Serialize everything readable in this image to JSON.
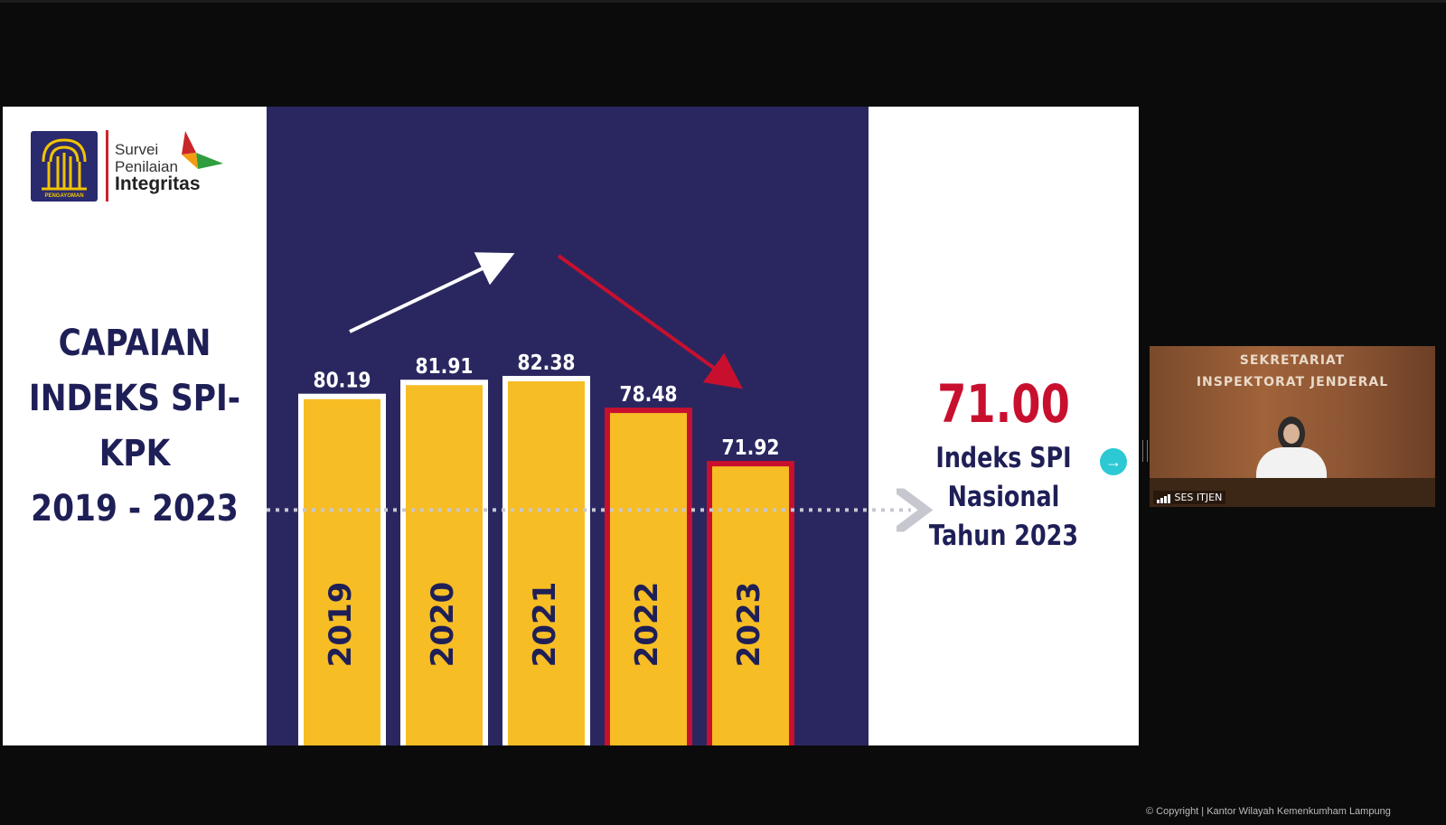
{
  "brand": {
    "logo_caption": "PENGAYOMAN",
    "line1": "Survei",
    "line2": "Penilaian",
    "line3": "Integritas"
  },
  "slide": {
    "title_lines": [
      "CAPAIAN",
      "INDEKS SPI-",
      "KPK",
      "2019 - 2023"
    ],
    "national_value": "71.00",
    "national_label_lines": [
      "Indeks SPI",
      "Nasional",
      "Tahun 2023"
    ]
  },
  "chart_data": {
    "type": "bar",
    "categories": [
      "2019",
      "2020",
      "2021",
      "2022",
      "2023"
    ],
    "values": [
      80.19,
      81.91,
      82.38,
      78.48,
      71.92
    ],
    "value_labels": [
      "80.19",
      "81.91",
      "82.38",
      "78.48",
      "71.92"
    ],
    "reference_line": 71.0,
    "highlighted": [
      false,
      false,
      false,
      true,
      true
    ],
    "colors": {
      "bar": "#f6bd25",
      "border_normal": "#ffffff",
      "border_highlight": "#c8102e",
      "background": "#2a2760"
    },
    "trend_arrows": [
      "up",
      "down"
    ]
  },
  "video": {
    "line1": "SEKRETARIAT",
    "line2": "INSPEKTORAT JENDERAL",
    "participant": "SES ITJEN"
  },
  "footer": {
    "copyright": "© Copyright | Kantor Wilayah Kemenkumham Lampung"
  },
  "icons": {
    "next": "arrow-right-circle-icon",
    "signal": "signal-bars-icon"
  }
}
